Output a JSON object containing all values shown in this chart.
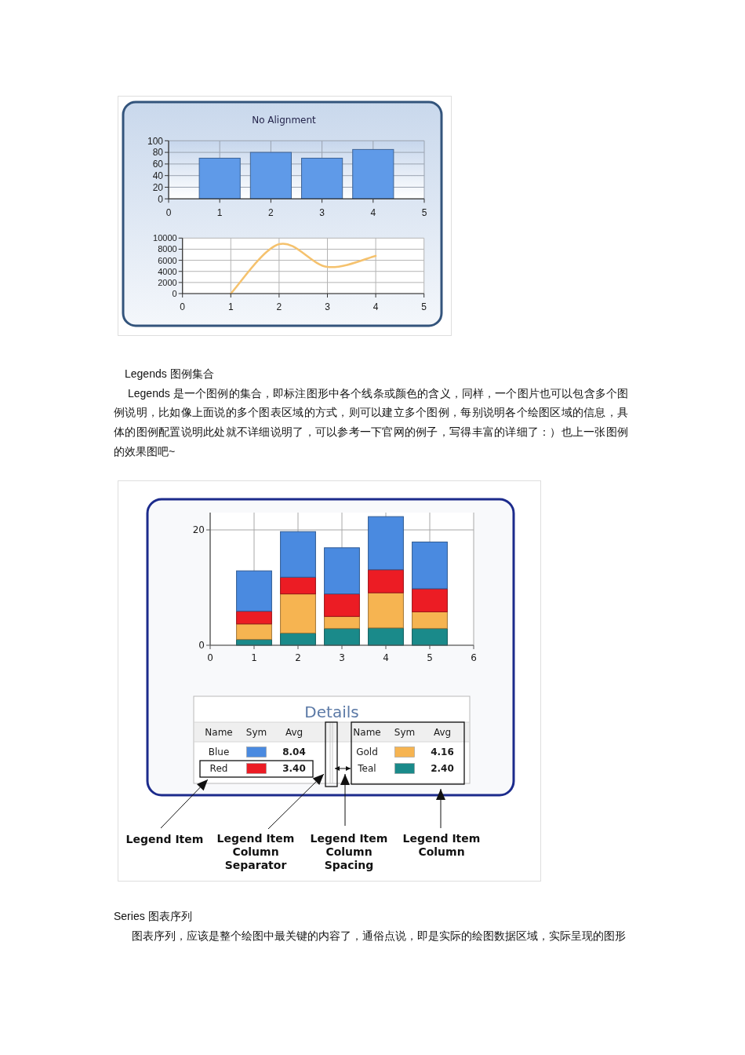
{
  "chart_data": [
    {
      "type": "bar",
      "title": "No Alignment",
      "x": [
        1,
        2,
        3,
        4
      ],
      "values": [
        70,
        80,
        70,
        85
      ],
      "color": "#5f9ae8",
      "xlim": [
        0,
        5
      ],
      "xticks": [
        0,
        1,
        2,
        3,
        4,
        5
      ],
      "ylim": [
        0,
        100
      ],
      "yticks": [
        0,
        20,
        40,
        60,
        80,
        100
      ],
      "grid": true
    },
    {
      "type": "line",
      "x": [
        1,
        2,
        3,
        4
      ],
      "values": [
        0,
        8900,
        4800,
        6800
      ],
      "color": "#f5c26e",
      "xlim": [
        0,
        5
      ],
      "xticks": [
        0,
        1,
        2,
        3,
        4,
        5
      ],
      "ylim": [
        0,
        10000
      ],
      "yticks": [
        0,
        2000,
        4000,
        6000,
        8000,
        10000
      ],
      "grid": true
    },
    {
      "type": "other",
      "title": "Legends 图例集合",
      "annotations": [
        "Legends 是一个图例的集合，即标注图形中各个线条或颜色的含义，同样，一个图片也可以包含多个图例说明，比如像上面说的多个图表区域的方式，则可以建立多个图例，每别说明各个绘图区域的信息，具体的图例配置说明此处就不详细说明了，可以参考一下官网的例子，写得丰富的详细了：）也上一张图例的效果图吧~"
      ]
    },
    {
      "type": "bar",
      "stacked": true,
      "x": [
        1,
        2,
        3,
        4,
        5
      ],
      "series": [
        {
          "name": "Teal",
          "color": "#1a8a8a",
          "values": [
            1.0,
            2.1,
            2.9,
            3.0,
            2.9
          ]
        },
        {
          "name": "Gold",
          "color": "#f6b451",
          "values": [
            2.7,
            6.8,
            2.1,
            6.1,
            2.9
          ]
        },
        {
          "name": "Red",
          "color": "#ec1c24",
          "values": [
            2.2,
            2.9,
            3.9,
            4.0,
            4.0
          ]
        },
        {
          "name": "Blue",
          "color": "#4a8ae0",
          "values": [
            7.0,
            7.9,
            8.0,
            9.2,
            8.1
          ]
        }
      ],
      "xlim": [
        0,
        6
      ],
      "xticks": [
        0,
        1,
        2,
        3,
        4,
        5,
        6
      ],
      "ylim": [
        0,
        23
      ],
      "yticks": [
        0,
        20
      ],
      "grid": true,
      "legend": "bottom",
      "legend_title": "Details",
      "annotations": [
        "Name",
        "Sym",
        "Avg",
        "Name",
        "Sym",
        "Avg",
        "8.04",
        "3.40",
        "4.16",
        "2.40",
        "Legend Item",
        "Legend Item Column Separator",
        "Legend Item Column Spacing",
        "Legend Item Column"
      ]
    },
    {
      "type": "other",
      "title": "Series 图表序列",
      "annotations": [
        "图表序列，应该是整个绘图中最关键的内容了，通俗点说，即是实际的绘图数据区域，实际呈现的图形"
      ]
    }
  ]
}
